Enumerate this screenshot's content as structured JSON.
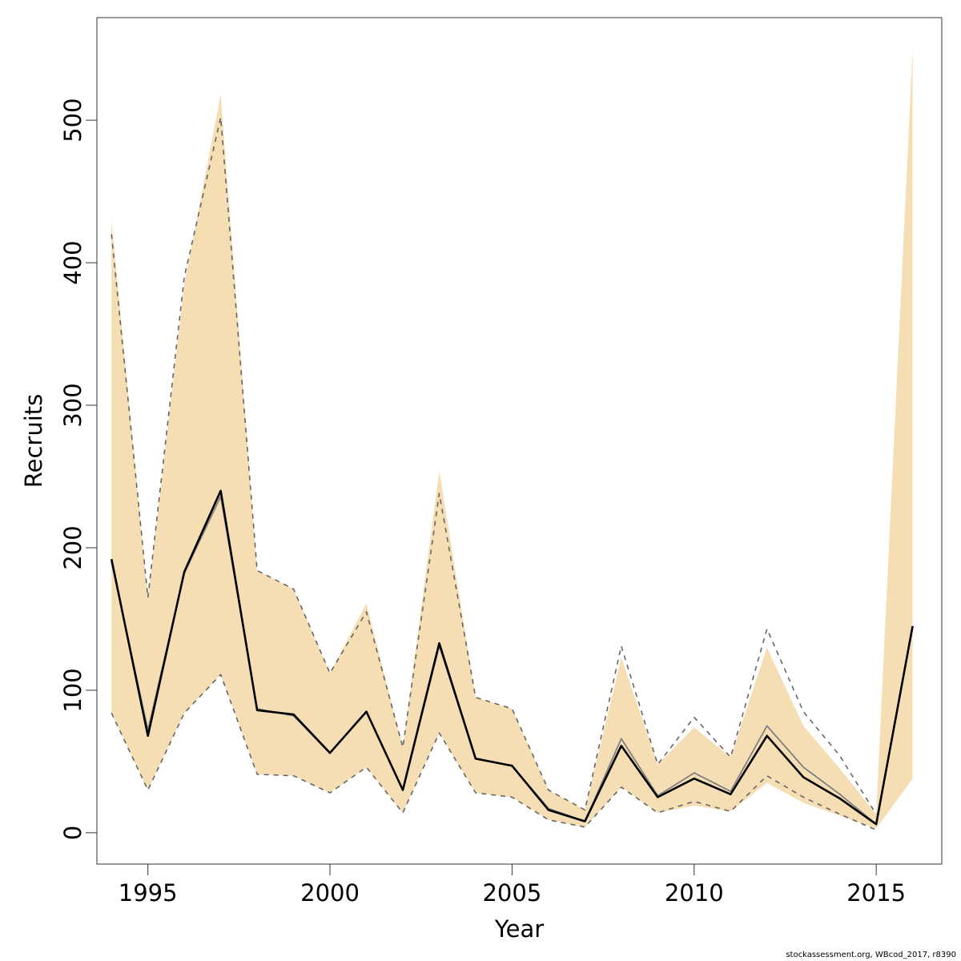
{
  "chart_data": {
    "type": "line",
    "title": "",
    "xlabel": "Year",
    "ylabel": "Recruits",
    "xlim": [
      1993.6,
      2016.8
    ],
    "ylim": [
      -22,
      572
    ],
    "x_ticks": [
      1995,
      2000,
      2005,
      2010,
      2015
    ],
    "y_ticks": [
      0,
      100,
      200,
      300,
      400,
      500
    ],
    "grid": false,
    "legend": "none",
    "x": [
      1994,
      1995,
      1996,
      1997,
      1998,
      1999,
      2000,
      2001,
      2002,
      2003,
      2004,
      2005,
      2006,
      2007,
      2008,
      2009,
      2010,
      2011,
      2012,
      2013,
      2014,
      2015,
      2016
    ],
    "series": [
      {
        "role": "current_estimate",
        "values": [
          192,
          68,
          183,
          240,
          86,
          83,
          56,
          85,
          30,
          133,
          52,
          47,
          16,
          8,
          61,
          25,
          38,
          27,
          68,
          39,
          24,
          6,
          145
        ],
        "color": "#000000"
      },
      {
        "role": "previous_estimate",
        "values": [
          190,
          72,
          182,
          236,
          87,
          82,
          56,
          85,
          30,
          131,
          52,
          47,
          17,
          8,
          66,
          26,
          42,
          29,
          75,
          46,
          27,
          6,
          null
        ],
        "color": "#808080"
      },
      {
        "role": "previous_upper_ci",
        "values": [
          420,
          165,
          390,
          502,
          184,
          171,
          112,
          155,
          60,
          238,
          95,
          87,
          30,
          16,
          131,
          48,
          81,
          53,
          143,
          85,
          54,
          13,
          null
        ],
        "color": "#666666",
        "dash": "6,6"
      },
      {
        "role": "previous_lower_ci",
        "values": [
          84,
          30,
          84,
          111,
          41,
          40,
          28,
          46,
          14,
          70,
          28,
          25,
          9,
          4,
          32,
          14,
          22,
          15,
          40,
          25,
          13,
          2,
          null
        ],
        "color": "#666666",
        "dash": "6,6"
      }
    ],
    "band": {
      "upper": [
        430,
        165,
        385,
        518,
        184,
        171,
        112,
        161,
        60,
        254,
        95,
        87,
        30,
        16,
        123,
        48,
        74,
        53,
        130,
        75,
        45,
        13,
        550
      ],
      "lower": [
        84,
        30,
        84,
        111,
        41,
        40,
        28,
        46,
        14,
        70,
        28,
        25,
        9,
        4,
        32,
        14,
        19,
        15,
        35,
        21,
        12,
        3,
        38
      ],
      "color": "#F5DEB3"
    },
    "colors": {
      "band": "#F5DEB3",
      "current": "#000000",
      "previous": "#808080",
      "ci": "#666666"
    }
  },
  "footnote": "stockassessment.org, WBcod_2017, r8390"
}
